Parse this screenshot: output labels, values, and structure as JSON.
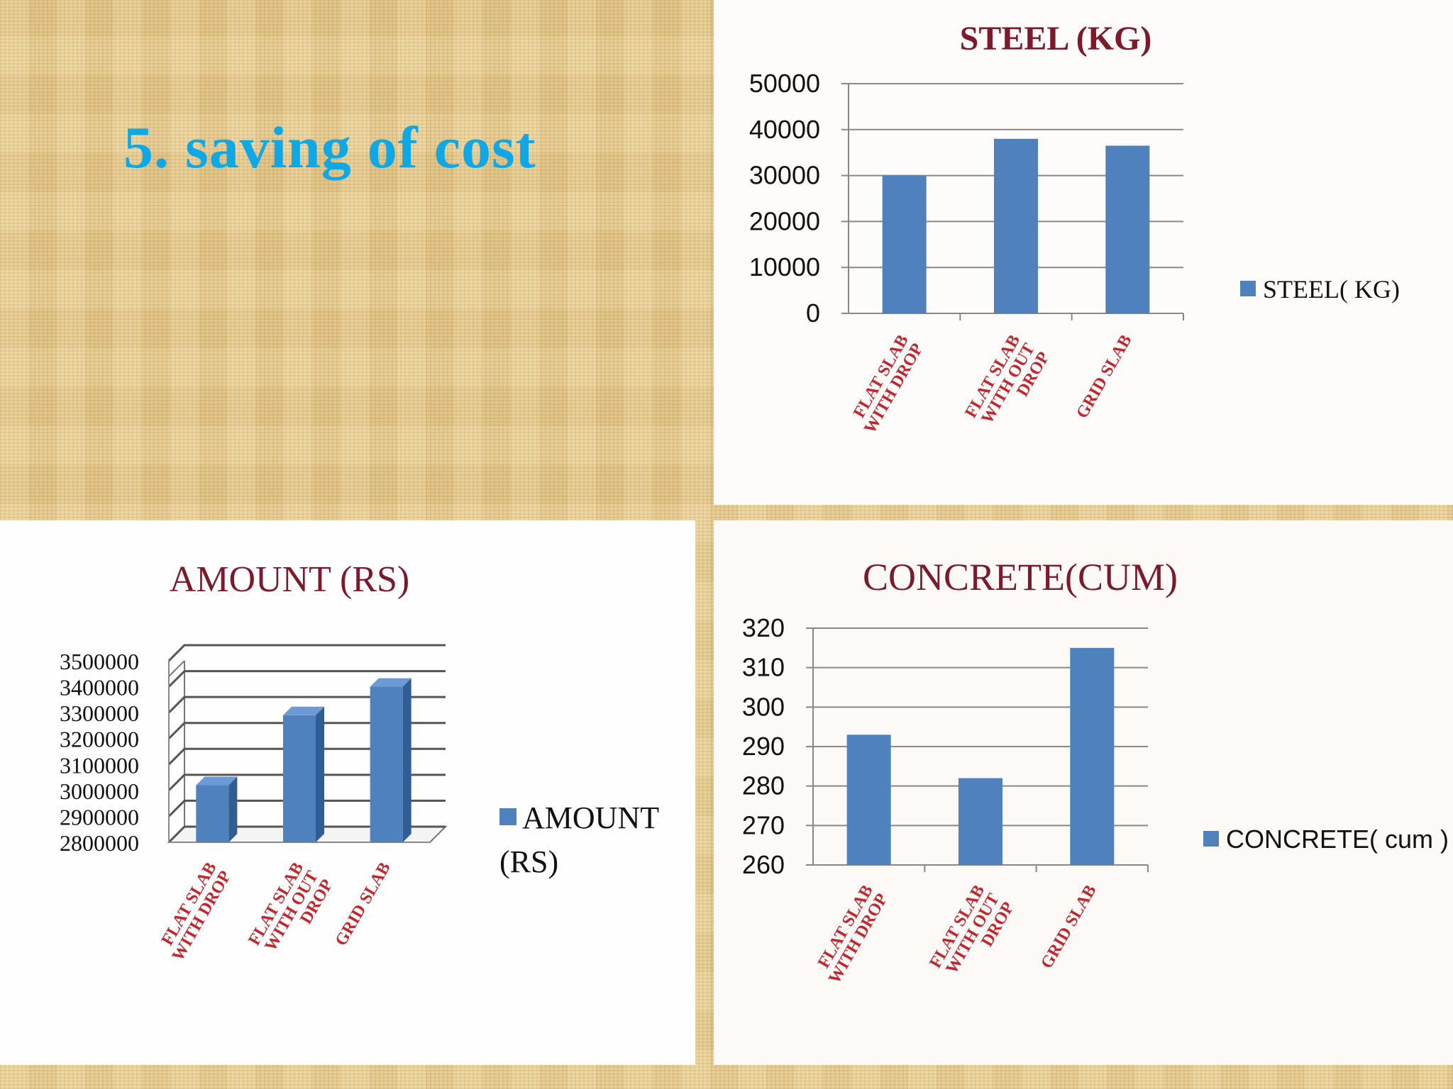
{
  "slide": {
    "title": "5. saving of cost"
  },
  "colors": {
    "bar": "#4f81bd",
    "bar_dark": "#2f5d94",
    "title_text": "#7b1a2a",
    "category_text": "#c0282e",
    "slide_title": "#0fa8e6"
  },
  "chart_data": [
    {
      "type": "bar",
      "title": "STEEL (KG)",
      "categories": [
        [
          "FLAT SLAB",
          "WITH DROP"
        ],
        [
          "FLAT SLAB",
          "WITH OUT",
          "DROP"
        ],
        [
          "GRID SLAB"
        ]
      ],
      "series": [
        {
          "name": "STEEL( KG)",
          "values": [
            30000,
            38000,
            36500
          ]
        }
      ],
      "ylim": [
        0,
        50000
      ],
      "yticks": [
        0,
        10000,
        20000,
        30000,
        40000,
        50000
      ],
      "grid": true,
      "legend": "right"
    },
    {
      "type": "bar",
      "style": "3d",
      "title": "AMOUNT (RS)",
      "categories": [
        [
          "FLAT SLAB",
          "WITH DROP"
        ],
        [
          "FLAT SLAB",
          "WITH OUT",
          "DROP"
        ],
        [
          "GRID SLAB"
        ]
      ],
      "series": [
        {
          "name": "AMOUNT (RS)",
          "values": [
            3020000,
            3290000,
            3400000
          ]
        }
      ],
      "ylim": [
        2800000,
        3500000
      ],
      "yticks": [
        2800000,
        2900000,
        3000000,
        3100000,
        3200000,
        3300000,
        3400000,
        3500000
      ],
      "grid": true,
      "legend": "right"
    },
    {
      "type": "bar",
      "title": "CONCRETE(CUM)",
      "categories": [
        [
          "FLAT SLAB",
          "WITH DROP"
        ],
        [
          "FLAT SLAB",
          "WITH OUT",
          "DROP"
        ],
        [
          "GRID SLAB"
        ]
      ],
      "series": [
        {
          "name": "CONCRETE( cum )",
          "values": [
            293,
            282,
            315
          ]
        }
      ],
      "ylim": [
        260,
        320
      ],
      "yticks": [
        260,
        270,
        280,
        290,
        300,
        310,
        320
      ],
      "grid": true,
      "legend": "right"
    }
  ]
}
